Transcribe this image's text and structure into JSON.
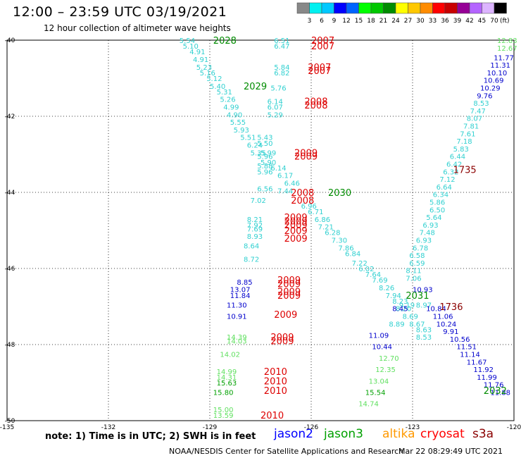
{
  "header": {
    "title": "12:00 – 23:59 UTC 03/19/2021",
    "subtitle": "12 hour collection of altimeter wave heights"
  },
  "colorbar": {
    "unit_label": "(ft)",
    "ticks": [
      "3",
      "6",
      "9",
      "12",
      "15",
      "18",
      "21",
      "24",
      "27",
      "30",
      "33",
      "36",
      "39",
      "42",
      "45",
      "70"
    ],
    "colors": [
      "#888888",
      "#00f0f0",
      "#00c8ff",
      "#0000ff",
      "#0064ff",
      "#00ff00",
      "#00c800",
      "#008c00",
      "#ffff00",
      "#ffc800",
      "#ff8c00",
      "#ff0000",
      "#c80000",
      "#960096",
      "#b464ff",
      "#dcb4ff",
      "#000000"
    ]
  },
  "axes": {
    "x_ticks": [
      "-135",
      "-132",
      "-129",
      "-126",
      "-123",
      "-120"
    ],
    "y_ticks": [
      "-40",
      "-42",
      "-44",
      "-46",
      "-48",
      "-50"
    ],
    "x_range": [
      -135,
      -120
    ],
    "y_range": [
      -50,
      -40
    ]
  },
  "track_times": [
    {
      "text": "2028",
      "color": "#008c00",
      "lon": -128.9,
      "lat": -40.0
    },
    {
      "text": "2029",
      "color": "#008c00",
      "lon": -128.0,
      "lat": -41.2
    },
    {
      "text": "2030",
      "color": "#008c00",
      "lon": -125.5,
      "lat": -44.0
    },
    {
      "text": "2031",
      "color": "#008c00",
      "lon": -123.2,
      "lat": -46.7
    },
    {
      "text": "2032",
      "color": "#008c00",
      "lon": -120.9,
      "lat": -49.2
    },
    {
      "text": "2007",
      "color": "#dd0000",
      "lon": -126.0,
      "lat": -40.0
    },
    {
      "text": "2007",
      "color": "#dd0000",
      "lon": -126.0,
      "lat": -40.15
    },
    {
      "text": "2007",
      "color": "#dd0000",
      "lon": -126.1,
      "lat": -40.7
    },
    {
      "text": "2007",
      "color": "#dd0000",
      "lon": -126.1,
      "lat": -40.8
    },
    {
      "text": "2008",
      "color": "#dd0000",
      "lon": -126.2,
      "lat": -41.6
    },
    {
      "text": "2008",
      "color": "#dd0000",
      "lon": -126.2,
      "lat": -41.7
    },
    {
      "text": "2009",
      "color": "#dd0000",
      "lon": -126.5,
      "lat": -42.95
    },
    {
      "text": "2009",
      "color": "#dd0000",
      "lon": -126.5,
      "lat": -43.05
    },
    {
      "text": "2008",
      "color": "#dd0000",
      "lon": -126.6,
      "lat": -44.0
    },
    {
      "text": "2008",
      "color": "#dd0000",
      "lon": -126.6,
      "lat": -44.2
    },
    {
      "text": "2009",
      "color": "#dd0000",
      "lon": -126.8,
      "lat": -44.65
    },
    {
      "text": "2009",
      "color": "#dd0000",
      "lon": -126.8,
      "lat": -44.75
    },
    {
      "text": "2009",
      "color": "#dd0000",
      "lon": -126.8,
      "lat": -44.85
    },
    {
      "text": "2009",
      "color": "#dd0000",
      "lon": -126.8,
      "lat": -45.0
    },
    {
      "text": "2009",
      "color": "#dd0000",
      "lon": -126.8,
      "lat": -45.2
    },
    {
      "text": "2009",
      "color": "#dd0000",
      "lon": -127.0,
      "lat": -46.3
    },
    {
      "text": "2009",
      "color": "#dd0000",
      "lon": -127.0,
      "lat": -46.4
    },
    {
      "text": "2009",
      "color": "#dd0000",
      "lon": -127.0,
      "lat": -46.6
    },
    {
      "text": "2009",
      "color": "#dd0000",
      "lon": -127.0,
      "lat": -46.7
    },
    {
      "text": "2009",
      "color": "#dd0000",
      "lon": -127.1,
      "lat": -47.2
    },
    {
      "text": "2009",
      "color": "#dd0000",
      "lon": -127.2,
      "lat": -47.8
    },
    {
      "text": "2009",
      "color": "#dd0000",
      "lon": -127.2,
      "lat": -47.9
    },
    {
      "text": "2010",
      "color": "#dd0000",
      "lon": -127.4,
      "lat": -48.7
    },
    {
      "text": "2010",
      "color": "#dd0000",
      "lon": -127.4,
      "lat": -48.95
    },
    {
      "text": "2010",
      "color": "#dd0000",
      "lon": -127.4,
      "lat": -49.2
    },
    {
      "text": "2010",
      "color": "#dd0000",
      "lon": -127.5,
      "lat": -49.85
    },
    {
      "text": "1735",
      "color": "#8b0000",
      "lon": -121.8,
      "lat": -43.4
    },
    {
      "text": "1736",
      "color": "#8b0000",
      "lon": -122.2,
      "lat": -47.0
    }
  ],
  "wave_heights": [
    {
      "t": "5.54",
      "c": "#30d0d0",
      "lon": -129.9,
      "lat": -40.0
    },
    {
      "t": "5.10",
      "c": "#30d0d0",
      "lon": -129.8,
      "lat": -40.15
    },
    {
      "t": "4.91",
      "c": "#30d0d0",
      "lon": -129.6,
      "lat": -40.3
    },
    {
      "t": "4.91",
      "c": "#30d0d0",
      "lon": -129.5,
      "lat": -40.5
    },
    {
      "t": "5.23",
      "c": "#30d0d0",
      "lon": -129.4,
      "lat": -40.7
    },
    {
      "t": "5.16",
      "c": "#30d0d0",
      "lon": -129.3,
      "lat": -40.85
    },
    {
      "t": "5.12",
      "c": "#30d0d0",
      "lon": -129.1,
      "lat": -41.0
    },
    {
      "t": "5.40",
      "c": "#30d0d0",
      "lon": -129.0,
      "lat": -41.2
    },
    {
      "t": "5.31",
      "c": "#30d0d0",
      "lon": -128.8,
      "lat": -41.35
    },
    {
      "t": "5.26",
      "c": "#30d0d0",
      "lon": -128.7,
      "lat": -41.55
    },
    {
      "t": "4.99",
      "c": "#30d0d0",
      "lon": -128.6,
      "lat": -41.75
    },
    {
      "t": "4.90",
      "c": "#30d0d0",
      "lon": -128.5,
      "lat": -41.95
    },
    {
      "t": "5.55",
      "c": "#30d0d0",
      "lon": -128.4,
      "lat": -42.15
    },
    {
      "t": "5.93",
      "c": "#30d0d0",
      "lon": -128.3,
      "lat": -42.35
    },
    {
      "t": "5.51",
      "c": "#30d0d0",
      "lon": -128.1,
      "lat": -42.55
    },
    {
      "t": "5.43",
      "c": "#30d0d0",
      "lon": -127.6,
      "lat": -42.55
    },
    {
      "t": "6.24",
      "c": "#30d0d0",
      "lon": -127.9,
      "lat": -42.75
    },
    {
      "t": "5.50",
      "c": "#30d0d0",
      "lon": -127.6,
      "lat": -42.7
    },
    {
      "t": "5.35",
      "c": "#30d0d0",
      "lon": -127.8,
      "lat": -42.95
    },
    {
      "t": "5.99",
      "c": "#30d0d0",
      "lon": -127.5,
      "lat": -42.95
    },
    {
      "t": "5.96",
      "c": "#30d0d0",
      "lon": -127.6,
      "lat": -43.05
    },
    {
      "t": "5.90",
      "c": "#30d0d0",
      "lon": -127.5,
      "lat": -43.2
    },
    {
      "t": "5.88",
      "c": "#30d0d0",
      "lon": -127.6,
      "lat": -43.3
    },
    {
      "t": "5.96",
      "c": "#30d0d0",
      "lon": -127.6,
      "lat": -43.45
    },
    {
      "t": "6.14",
      "c": "#30d0d0",
      "lon": -127.2,
      "lat": -43.35
    },
    {
      "t": "6.17",
      "c": "#30d0d0",
      "lon": -127.0,
      "lat": -43.55
    },
    {
      "t": "5.76",
      "c": "#30d0d0",
      "lon": -127.2,
      "lat": -41.25
    },
    {
      "t": "6.51",
      "c": "#30d0d0",
      "lon": -127.1,
      "lat": -40.0
    },
    {
      "t": "6.47",
      "c": "#30d0d0",
      "lon": -127.1,
      "lat": -40.15
    },
    {
      "t": "5.84",
      "c": "#30d0d0",
      "lon": -127.1,
      "lat": -40.7
    },
    {
      "t": "6.82",
      "c": "#30d0d0",
      "lon": -127.1,
      "lat": -40.85
    },
    {
      "t": "6.14",
      "c": "#30d0d0",
      "lon": -127.3,
      "lat": -41.6
    },
    {
      "t": "6.07",
      "c": "#30d0d0",
      "lon": -127.3,
      "lat": -41.75
    },
    {
      "t": "5.29",
      "c": "#30d0d0",
      "lon": -127.3,
      "lat": -41.95
    },
    {
      "t": "6.46",
      "c": "#30d0d0",
      "lon": -126.8,
      "lat": -43.75
    },
    {
      "t": "6.56",
      "c": "#30d0d0",
      "lon": -127.6,
      "lat": -43.9
    },
    {
      "t": "7.44",
      "c": "#30d0d0",
      "lon": -127.0,
      "lat": -43.95
    },
    {
      "t": "7.02",
      "c": "#30d0d0",
      "lon": -127.8,
      "lat": -44.2
    },
    {
      "t": "6.96",
      "c": "#30d0d0",
      "lon": -126.3,
      "lat": -44.35
    },
    {
      "t": "6.71",
      "c": "#30d0d0",
      "lon": -126.1,
      "lat": -44.5
    },
    {
      "t": "6.86",
      "c": "#30d0d0",
      "lon": -125.9,
      "lat": -44.7
    },
    {
      "t": "7.21",
      "c": "#30d0d0",
      "lon": -125.8,
      "lat": -44.9
    },
    {
      "t": "6.28",
      "c": "#30d0d0",
      "lon": -125.6,
      "lat": -45.05
    },
    {
      "t": "7.30",
      "c": "#30d0d0",
      "lon": -125.4,
      "lat": -45.25
    },
    {
      "t": "7.86",
      "c": "#30d0d0",
      "lon": -125.2,
      "lat": -45.45
    },
    {
      "t": "6.84",
      "c": "#30d0d0",
      "lon": -125.0,
      "lat": -45.6
    },
    {
      "t": "7.22",
      "c": "#30d0d0",
      "lon": -124.8,
      "lat": -45.85
    },
    {
      "t": "6.02",
      "c": "#30d0d0",
      "lon": -124.6,
      "lat": -46.0
    },
    {
      "t": "7.64",
      "c": "#30d0d0",
      "lon": -124.4,
      "lat": -46.15
    },
    {
      "t": "7.69",
      "c": "#30d0d0",
      "lon": -124.2,
      "lat": -46.3
    },
    {
      "t": "8.26",
      "c": "#30d0d0",
      "lon": -124.0,
      "lat": -46.5
    },
    {
      "t": "7.94",
      "c": "#30d0d0",
      "lon": -123.8,
      "lat": -46.7
    },
    {
      "t": "8.23",
      "c": "#30d0d0",
      "lon": -123.6,
      "lat": -46.85
    },
    {
      "t": "8.20",
      "c": "#30d0d0",
      "lon": -123.5,
      "lat": -47.05
    },
    {
      "t": "8.69",
      "c": "#30d0d0",
      "lon": -123.3,
      "lat": -47.25
    },
    {
      "t": "8.67",
      "c": "#30d0d0",
      "lon": -123.1,
      "lat": -47.45
    },
    {
      "t": "8.63",
      "c": "#30d0d0",
      "lon": -122.9,
      "lat": -47.6
    },
    {
      "t": "8.53",
      "c": "#30d0d0",
      "lon": -122.9,
      "lat": -47.8
    },
    {
      "t": "8.21",
      "c": "#30d0d0",
      "lon": -127.9,
      "lat": -44.7
    },
    {
      "t": "7.92",
      "c": "#30d0d0",
      "lon": -127.9,
      "lat": -44.85
    },
    {
      "t": "7.69",
      "c": "#30d0d0",
      "lon": -127.9,
      "lat": -44.95
    },
    {
      "t": "8.93",
      "c": "#30d0d0",
      "lon": -127.9,
      "lat": -45.15
    },
    {
      "t": "8.64",
      "c": "#30d0d0",
      "lon": -128.0,
      "lat": -45.4
    },
    {
      "t": "8.72",
      "c": "#30d0d0",
      "lon": -128.0,
      "lat": -45.75
    },
    {
      "t": "12.83",
      "c": "#60e060",
      "lon": -120.5,
      "lat": -40.0
    },
    {
      "t": "12.67",
      "c": "#60e060",
      "lon": -120.5,
      "lat": -40.2
    },
    {
      "t": "11.77",
      "c": "#0000cc",
      "lon": -120.6,
      "lat": -40.45
    },
    {
      "t": "11.31",
      "c": "#0000cc",
      "lon": -120.7,
      "lat": -40.65
    },
    {
      "t": "10.10",
      "c": "#0000cc",
      "lon": -120.8,
      "lat": -40.85
    },
    {
      "t": "10.69",
      "c": "#0000cc",
      "lon": -120.9,
      "lat": -41.05
    },
    {
      "t": "10.29",
      "c": "#0000cc",
      "lon": -121.0,
      "lat": -41.25
    },
    {
      "t": "9.76",
      "c": "#0000cc",
      "lon": -121.1,
      "lat": -41.45
    },
    {
      "t": "8.53",
      "c": "#30d0d0",
      "lon": -121.2,
      "lat": -41.65
    },
    {
      "t": "7.47",
      "c": "#30d0d0",
      "lon": -121.3,
      "lat": -41.85
    },
    {
      "t": "8.07",
      "c": "#30d0d0",
      "lon": -121.4,
      "lat": -42.05
    },
    {
      "t": "7.81",
      "c": "#30d0d0",
      "lon": -121.5,
      "lat": -42.25
    },
    {
      "t": "7.61",
      "c": "#30d0d0",
      "lon": -121.6,
      "lat": -42.45
    },
    {
      "t": "7.18",
      "c": "#30d0d0",
      "lon": -121.7,
      "lat": -42.65
    },
    {
      "t": "5.83",
      "c": "#30d0d0",
      "lon": -121.8,
      "lat": -42.85
    },
    {
      "t": "6.44",
      "c": "#30d0d0",
      "lon": -121.9,
      "lat": -43.05
    },
    {
      "t": "6.42",
      "c": "#30d0d0",
      "lon": -122.0,
      "lat": -43.25
    },
    {
      "t": "6.32",
      "c": "#30d0d0",
      "lon": -122.1,
      "lat": -43.45
    },
    {
      "t": "7.12",
      "c": "#30d0d0",
      "lon": -122.2,
      "lat": -43.65
    },
    {
      "t": "6.64",
      "c": "#30d0d0",
      "lon": -122.3,
      "lat": -43.85
    },
    {
      "t": "6.34",
      "c": "#30d0d0",
      "lon": -122.4,
      "lat": -44.05
    },
    {
      "t": "5.86",
      "c": "#30d0d0",
      "lon": -122.5,
      "lat": -44.25
    },
    {
      "t": "6.50",
      "c": "#30d0d0",
      "lon": -122.5,
      "lat": -44.45
    },
    {
      "t": "5.64",
      "c": "#30d0d0",
      "lon": -122.6,
      "lat": -44.65
    },
    {
      "t": "6.93",
      "c": "#30d0d0",
      "lon": -122.7,
      "lat": -44.85
    },
    {
      "t": "7.48",
      "c": "#30d0d0",
      "lon": -122.8,
      "lat": -45.05
    },
    {
      "t": "6.93",
      "c": "#30d0d0",
      "lon": -122.9,
      "lat": -45.25
    },
    {
      "t": "6.78",
      "c": "#30d0d0",
      "lon": -123.0,
      "lat": -45.45
    },
    {
      "t": "6.58",
      "c": "#30d0d0",
      "lon": -123.1,
      "lat": -45.65
    },
    {
      "t": "6.59",
      "c": "#30d0d0",
      "lon": -123.1,
      "lat": -45.85
    },
    {
      "t": "8.11",
      "c": "#30d0d0",
      "lon": -123.2,
      "lat": -46.05
    },
    {
      "t": "7.06",
      "c": "#30d0d0",
      "lon": -123.2,
      "lat": -46.25
    },
    {
      "t": "9.19",
      "c": "#30d0d0",
      "lon": -123.4,
      "lat": -46.95
    },
    {
      "t": "8.97",
      "c": "#30d0d0",
      "lon": -122.9,
      "lat": -46.95
    },
    {
      "t": "8.45",
      "c": "#0000cc",
      "lon": -123.6,
      "lat": -47.05
    },
    {
      "t": "10.93",
      "c": "#0000cc",
      "lon": -123.0,
      "lat": -46.55
    },
    {
      "t": "10.84",
      "c": "#0000cc",
      "lon": -122.6,
      "lat": -47.05
    },
    {
      "t": "11.06",
      "c": "#0000cc",
      "lon": -122.4,
      "lat": -47.25
    },
    {
      "t": "10.24",
      "c": "#0000cc",
      "lon": -122.3,
      "lat": -47.45
    },
    {
      "t": "9.91",
      "c": "#0000cc",
      "lon": -122.1,
      "lat": -47.65
    },
    {
      "t": "10.56",
      "c": "#0000cc",
      "lon": -121.9,
      "lat": -47.85
    },
    {
      "t": "11.51",
      "c": "#0000cc",
      "lon": -121.7,
      "lat": -48.05
    },
    {
      "t": "11.14",
      "c": "#0000cc",
      "lon": -121.6,
      "lat": -48.25
    },
    {
      "t": "11.67",
      "c": "#0000cc",
      "lon": -121.4,
      "lat": -48.45
    },
    {
      "t": "11.92",
      "c": "#0000cc",
      "lon": -121.2,
      "lat": -48.65
    },
    {
      "t": "11.99",
      "c": "#0000cc",
      "lon": -121.1,
      "lat": -48.85
    },
    {
      "t": "11.76",
      "c": "#0000cc",
      "lon": -120.9,
      "lat": -49.05
    },
    {
      "t": "11.88",
      "c": "#0000cc",
      "lon": -120.7,
      "lat": -49.25
    },
    {
      "t": "8.89",
      "c": "#30d0d0",
      "lon": -123.7,
      "lat": -47.45
    },
    {
      "t": "11.09",
      "c": "#0000cc",
      "lon": -124.3,
      "lat": -47.75
    },
    {
      "t": "10.44",
      "c": "#0000cc",
      "lon": -124.2,
      "lat": -48.05
    },
    {
      "t": "12.70",
      "c": "#60e060",
      "lon": -124.0,
      "lat": -48.35
    },
    {
      "t": "12.35",
      "c": "#60e060",
      "lon": -124.1,
      "lat": -48.65
    },
    {
      "t": "13.04",
      "c": "#60e060",
      "lon": -124.3,
      "lat": -48.95
    },
    {
      "t": "15.54",
      "c": "#00a000",
      "lon": -124.4,
      "lat": -49.25
    },
    {
      "t": "14.74",
      "c": "#60e060",
      "lon": -124.6,
      "lat": -49.55
    },
    {
      "t": "8.85",
      "c": "#0000cc",
      "lon": -128.2,
      "lat": -46.35
    },
    {
      "t": "13.07",
      "c": "#0000cc",
      "lon": -128.4,
      "lat": -46.55
    },
    {
      "t": "11.84",
      "c": "#0000cc",
      "lon": -128.4,
      "lat": -46.7
    },
    {
      "t": "11.30",
      "c": "#0000cc",
      "lon": -128.5,
      "lat": -46.95
    },
    {
      "t": "10.91",
      "c": "#0000cc",
      "lon": -128.5,
      "lat": -47.25
    },
    {
      "t": "14.39",
      "c": "#60e060",
      "lon": -128.5,
      "lat": -47.8
    },
    {
      "t": "14.03",
      "c": "#60e060",
      "lon": -128.5,
      "lat": -47.9
    },
    {
      "t": "14.02",
      "c": "#60e060",
      "lon": -128.7,
      "lat": -48.25
    },
    {
      "t": "14.99",
      "c": "#60e060",
      "lon": -128.8,
      "lat": -48.7
    },
    {
      "t": "14.31",
      "c": "#60e060",
      "lon": -128.8,
      "lat": -48.85
    },
    {
      "t": "15.63",
      "c": "#00a000",
      "lon": -128.8,
      "lat": -49.0
    },
    {
      "t": "15.80",
      "c": "#00a000",
      "lon": -128.9,
      "lat": -49.25
    },
    {
      "t": "15.00",
      "c": "#60e060",
      "lon": -128.9,
      "lat": -49.7
    },
    {
      "t": "13.59",
      "c": "#60e060",
      "lon": -128.9,
      "lat": -49.85
    }
  ],
  "footer": {
    "note": "note:  1) Time is in UTC; 2) SWH is in feet",
    "credit": "NOAA/NESDIS Center for Satellite Applications and Research",
    "timestamp": "Mar 22 08:29:49 UTC 2021",
    "satellites": [
      {
        "name": "jason2",
        "color": "#0000ff"
      },
      {
        "name": "jason3",
        "color": "#00a000"
      },
      {
        "name": "altika",
        "color": "#ff9900"
      },
      {
        "name": "cryosat",
        "color": "#ff0000"
      },
      {
        "name": "s3a",
        "color": "#8b0000"
      }
    ]
  }
}
